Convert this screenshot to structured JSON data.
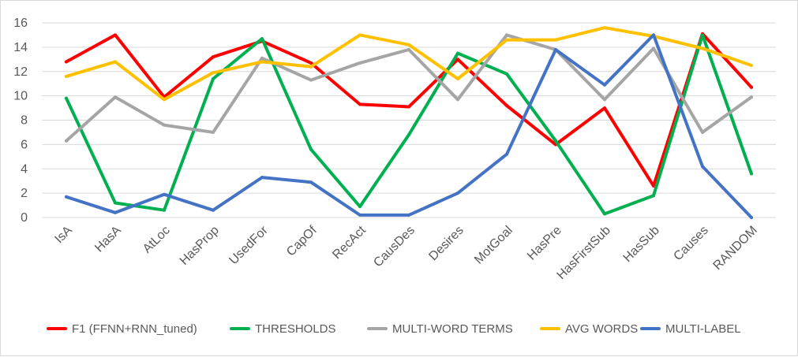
{
  "chart_data": {
    "type": "line",
    "title": "",
    "xlabel": "",
    "ylabel": "",
    "ylim": [
      0,
      16
    ],
    "yticks": [
      "0",
      "2",
      "4",
      "6",
      "8",
      "10",
      "12",
      "14",
      "16"
    ],
    "grid": "horizontal",
    "legend_position": "bottom",
    "categories": [
      "IsA",
      "HasA",
      "AtLoc",
      "HasProp",
      "UsedFor",
      "CapOf",
      "RecAct",
      "CausDes",
      "Desires",
      "MotGoal",
      "HasPre",
      "HasFirstSub",
      "HasSub",
      "Causes",
      "RANDOM"
    ],
    "series": [
      {
        "name": "F1 (FFNN+RNN_tuned)",
        "color": "#ff0000",
        "values": [
          12.8,
          15.0,
          9.9,
          13.2,
          14.5,
          12.7,
          9.3,
          9.1,
          13.0,
          9.2,
          6.0,
          9.0,
          2.6,
          15.1,
          10.7
        ]
      },
      {
        "name": "THRESHOLDS",
        "color": "#00b050",
        "values": [
          9.8,
          1.2,
          0.6,
          11.4,
          14.7,
          5.6,
          0.9,
          6.8,
          13.5,
          11.8,
          6.3,
          0.3,
          1.8,
          15.0,
          3.6
        ]
      },
      {
        "name": "MULTI-WORD TERMS",
        "color": "#a5a5a5",
        "values": [
          6.3,
          9.9,
          7.6,
          7.0,
          13.1,
          11.3,
          12.7,
          13.8,
          9.7,
          15.0,
          13.8,
          9.7,
          13.9,
          7.0,
          9.9
        ]
      },
      {
        "name": "AVG WORDS",
        "color": "#ffc000",
        "values": [
          11.6,
          12.8,
          9.7,
          11.9,
          12.8,
          12.4,
          15.0,
          14.2,
          11.4,
          14.6,
          14.6,
          15.6,
          14.9,
          13.9,
          12.5
        ]
      },
      {
        "name": "MULTI-LABEL",
        "color": "#4472c4",
        "values": [
          1.7,
          0.4,
          1.9,
          0.6,
          3.3,
          2.9,
          0.2,
          0.2,
          2.0,
          5.2,
          13.8,
          10.9,
          15.0,
          4.2,
          0.0
        ]
      }
    ]
  }
}
